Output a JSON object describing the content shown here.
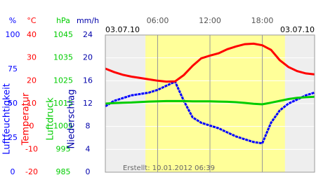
{
  "chart_data": {
    "type": "line",
    "date_left": "03.07.10",
    "date_right": "03.07.10",
    "footer": "Erstellt: 10.01.2012 06:39",
    "xlim": [
      0,
      24
    ],
    "xticks": [
      {
        "value": 6,
        "label": "06:00"
      },
      {
        "value": 12,
        "label": "12:00"
      },
      {
        "value": 18,
        "label": "18:00"
      }
    ],
    "daylight": [
      4.6,
      20.6
    ],
    "grid": true,
    "axes": [
      {
        "unit": "%",
        "label": "Luftfeuchtigkeit",
        "color": "#0000ff",
        "lim": [
          0,
          100
        ],
        "ticks": [
          100,
          75,
          50,
          25,
          0
        ]
      },
      {
        "unit": "°C",
        "label": "Temperatur",
        "color": "#ff0000",
        "lim": [
          -20,
          40
        ],
        "ticks": [
          40,
          30,
          20,
          10,
          0,
          -10,
          -20
        ]
      },
      {
        "unit": "hPa",
        "label": "Luftdruck",
        "color": "#00cc00",
        "lim": [
          985,
          1045
        ],
        "ticks": [
          1045,
          1035,
          1025,
          1015,
          1005,
          995,
          985
        ]
      },
      {
        "unit": "mm/h",
        "label": "Niederschlag",
        "color": "#0000aa",
        "lim": [
          0,
          24
        ],
        "ticks": [
          24,
          20,
          16,
          12,
          8,
          4,
          0
        ]
      }
    ],
    "x": [
      0,
      1,
      2,
      3,
      4,
      5,
      6,
      7,
      8,
      9,
      10,
      11,
      12,
      13,
      14,
      15,
      16,
      17,
      18,
      19,
      20,
      21,
      22,
      23,
      24
    ],
    "series": [
      {
        "name": "Luftfeuchtigkeit",
        "axis": 0,
        "color": "#0000ff",
        "values": [
          48,
          52,
          54,
          56,
          57,
          58,
          60,
          63,
          66,
          52,
          40,
          36,
          34,
          32,
          29,
          26,
          24,
          22,
          21,
          36,
          45,
          50,
          53,
          56,
          58
        ]
      },
      {
        "name": "Temperatur",
        "axis": 1,
        "color": "#ff0000",
        "values": [
          25.3,
          23.8,
          22.6,
          21.8,
          21.2,
          20.6,
          20.0,
          19.6,
          19.7,
          22.5,
          26.5,
          29.8,
          31.0,
          32.0,
          33.8,
          35.0,
          36.0,
          36.2,
          35.5,
          33.5,
          29.0,
          26.0,
          24.2,
          23.2,
          22.8
        ]
      },
      {
        "name": "Luftdruck",
        "axis": 2,
        "color": "#00cc00",
        "values": [
          1015.0,
          1015.2,
          1015.4,
          1015.5,
          1015.7,
          1015.9,
          1016.0,
          1016.1,
          1016.1,
          1016.1,
          1016.0,
          1016.0,
          1016.0,
          1015.9,
          1015.8,
          1015.6,
          1015.3,
          1014.9,
          1014.7,
          1015.4,
          1016.2,
          1017.0,
          1017.5,
          1017.8,
          1018.0
        ]
      }
    ]
  }
}
